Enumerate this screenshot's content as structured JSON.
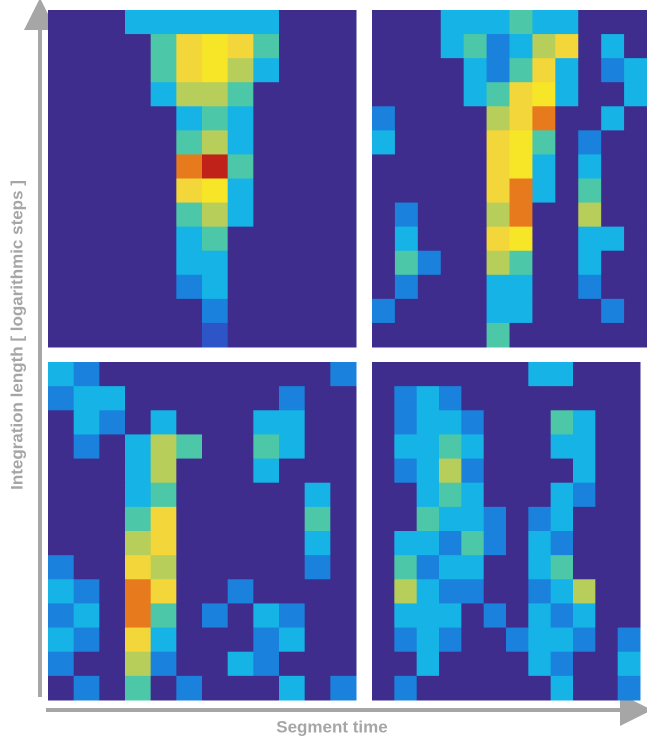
{
  "chart_data": {
    "type": "heatmap",
    "xlabel": "Segment time",
    "ylabel": "Integration length [ logarithmic steps ]",
    "colormap": [
      "#3e2d8c",
      "#2d55c8",
      "#1a82dc",
      "#16b3e6",
      "#4cc8a8",
      "#b7cf5a",
      "#f3d63a",
      "#f7e628",
      "#e87a1e",
      "#c0221a"
    ],
    "panels": [
      {
        "values": [
          [
            0,
            0,
            0,
            3,
            3,
            3,
            3,
            3,
            3,
            0,
            0,
            0
          ],
          [
            0,
            0,
            0,
            0,
            4,
            6,
            7,
            6,
            4,
            0,
            0,
            0
          ],
          [
            0,
            0,
            0,
            0,
            4,
            6,
            7,
            5,
            3,
            0,
            0,
            0
          ],
          [
            0,
            0,
            0,
            0,
            3,
            5,
            5,
            4,
            0,
            0,
            0,
            0
          ],
          [
            0,
            0,
            0,
            0,
            0,
            3,
            4,
            3,
            0,
            0,
            0,
            0
          ],
          [
            0,
            0,
            0,
            0,
            0,
            4,
            5,
            3,
            0,
            0,
            0,
            0
          ],
          [
            0,
            0,
            0,
            0,
            0,
            8,
            9,
            4,
            0,
            0,
            0,
            0
          ],
          [
            0,
            0,
            0,
            0,
            0,
            6,
            7,
            3,
            0,
            0,
            0,
            0
          ],
          [
            0,
            0,
            0,
            0,
            0,
            4,
            5,
            3,
            0,
            0,
            0,
            0
          ],
          [
            0,
            0,
            0,
            0,
            0,
            3,
            4,
            0,
            0,
            0,
            0,
            0
          ],
          [
            0,
            0,
            0,
            0,
            0,
            3,
            3,
            0,
            0,
            0,
            0,
            0
          ],
          [
            0,
            0,
            0,
            0,
            0,
            2,
            3,
            0,
            0,
            0,
            0,
            0
          ],
          [
            0,
            0,
            0,
            0,
            0,
            0,
            2,
            0,
            0,
            0,
            0,
            0
          ],
          [
            0,
            0,
            0,
            0,
            0,
            0,
            1,
            0,
            0,
            0,
            0,
            0
          ]
        ]
      },
      {
        "values": [
          [
            0,
            0,
            0,
            3,
            3,
            3,
            4,
            3,
            3,
            0,
            0,
            0
          ],
          [
            0,
            0,
            0,
            3,
            4,
            2,
            3,
            5,
            6,
            0,
            3,
            0
          ],
          [
            0,
            0,
            0,
            0,
            3,
            2,
            4,
            6,
            3,
            0,
            2,
            3
          ],
          [
            0,
            0,
            0,
            0,
            3,
            4,
            6,
            7,
            3,
            0,
            0,
            3
          ],
          [
            2,
            0,
            0,
            0,
            0,
            5,
            6,
            8,
            0,
            0,
            3,
            0
          ],
          [
            3,
            0,
            0,
            0,
            0,
            6,
            7,
            4,
            0,
            2,
            0,
            0
          ],
          [
            0,
            0,
            0,
            0,
            0,
            6,
            7,
            3,
            0,
            3,
            0,
            0
          ],
          [
            0,
            0,
            0,
            0,
            0,
            6,
            8,
            3,
            0,
            4,
            0,
            0
          ],
          [
            0,
            2,
            0,
            0,
            0,
            5,
            8,
            0,
            0,
            5,
            0,
            0
          ],
          [
            0,
            3,
            0,
            0,
            0,
            6,
            7,
            0,
            0,
            3,
            3,
            0
          ],
          [
            0,
            4,
            2,
            0,
            0,
            5,
            4,
            0,
            0,
            3,
            0,
            0
          ],
          [
            0,
            2,
            0,
            0,
            0,
            3,
            3,
            0,
            0,
            2,
            0,
            0
          ],
          [
            2,
            0,
            0,
            0,
            0,
            3,
            3,
            0,
            0,
            0,
            2,
            0
          ],
          [
            0,
            0,
            0,
            0,
            0,
            4,
            0,
            0,
            0,
            0,
            0,
            0
          ]
        ]
      },
      {
        "values": [
          [
            3,
            2,
            0,
            0,
            0,
            0,
            0,
            0,
            0,
            0,
            0,
            2
          ],
          [
            2,
            3,
            3,
            0,
            0,
            0,
            0,
            0,
            0,
            2,
            0,
            0
          ],
          [
            0,
            3,
            2,
            0,
            3,
            0,
            0,
            0,
            3,
            3,
            0,
            0
          ],
          [
            0,
            2,
            0,
            3,
            5,
            4,
            0,
            0,
            4,
            3,
            0,
            0
          ],
          [
            0,
            0,
            0,
            3,
            5,
            0,
            0,
            0,
            3,
            0,
            0,
            0
          ],
          [
            0,
            0,
            0,
            3,
            4,
            0,
            0,
            0,
            0,
            0,
            3,
            0
          ],
          [
            0,
            0,
            0,
            4,
            6,
            0,
            0,
            0,
            0,
            0,
            4,
            0
          ],
          [
            0,
            0,
            0,
            5,
            6,
            0,
            0,
            0,
            0,
            0,
            3,
            0
          ],
          [
            2,
            0,
            0,
            6,
            5,
            0,
            0,
            0,
            0,
            0,
            2,
            0
          ],
          [
            3,
            2,
            0,
            8,
            6,
            0,
            0,
            2,
            0,
            0,
            0,
            0
          ],
          [
            2,
            3,
            0,
            8,
            4,
            0,
            2,
            0,
            3,
            2,
            0,
            0
          ],
          [
            3,
            2,
            0,
            6,
            3,
            0,
            0,
            0,
            2,
            3,
            0,
            0
          ],
          [
            2,
            0,
            0,
            5,
            2,
            0,
            0,
            3,
            2,
            0,
            0,
            0
          ],
          [
            0,
            2,
            0,
            4,
            0,
            2,
            0,
            0,
            0,
            3,
            0,
            2
          ]
        ]
      },
      {
        "values": [
          [
            0,
            0,
            0,
            0,
            0,
            0,
            0,
            3,
            3,
            0,
            0,
            0
          ],
          [
            0,
            2,
            3,
            2,
            0,
            0,
            0,
            0,
            0,
            0,
            0,
            0
          ],
          [
            0,
            2,
            3,
            3,
            2,
            0,
            0,
            0,
            4,
            3,
            0,
            0
          ],
          [
            0,
            3,
            3,
            4,
            3,
            0,
            0,
            0,
            3,
            3,
            0,
            0
          ],
          [
            0,
            2,
            3,
            5,
            2,
            0,
            0,
            0,
            0,
            3,
            0,
            0
          ],
          [
            0,
            0,
            3,
            4,
            3,
            0,
            0,
            0,
            3,
            2,
            0,
            0
          ],
          [
            0,
            0,
            4,
            3,
            3,
            2,
            0,
            2,
            3,
            0,
            0,
            0
          ],
          [
            0,
            3,
            3,
            2,
            4,
            2,
            0,
            3,
            2,
            0,
            0,
            0
          ],
          [
            0,
            4,
            2,
            3,
            3,
            0,
            0,
            3,
            4,
            0,
            0,
            0
          ],
          [
            0,
            5,
            3,
            2,
            2,
            0,
            0,
            2,
            3,
            5,
            0,
            0
          ],
          [
            0,
            3,
            3,
            3,
            0,
            2,
            0,
            3,
            2,
            3,
            0,
            0
          ],
          [
            0,
            2,
            3,
            2,
            0,
            0,
            2,
            3,
            3,
            2,
            0,
            2
          ],
          [
            0,
            0,
            3,
            0,
            0,
            0,
            0,
            3,
            2,
            0,
            0,
            3
          ],
          [
            0,
            2,
            0,
            0,
            0,
            0,
            0,
            0,
            3,
            0,
            0,
            2
          ]
        ]
      }
    ]
  }
}
